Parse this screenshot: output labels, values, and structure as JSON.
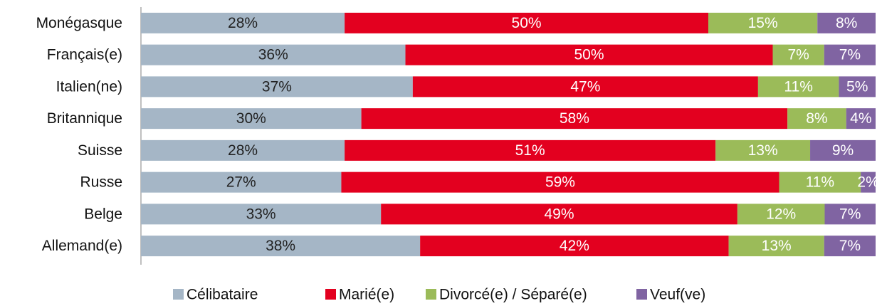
{
  "chart_data": {
    "type": "bar",
    "orientation": "horizontal",
    "stacked": "percent",
    "categories": [
      "Monégasque",
      "Français(e)",
      "Italien(ne)",
      "Britannique",
      "Suisse",
      "Russe",
      "Belge",
      "Allemand(e)"
    ],
    "series": [
      {
        "name": "Célibataire",
        "color": "#a5b6c6",
        "label_color": "#222222",
        "values": [
          28,
          36,
          37,
          30,
          28,
          27,
          33,
          38
        ],
        "value_labels": [
          "28%",
          "36%",
          "37%",
          "30%",
          "28%",
          "27%",
          "33%",
          "38%"
        ]
      },
      {
        "name": "Marié(e)",
        "color": "#e3001f",
        "label_color": "#ffffff",
        "values": [
          50,
          50,
          47,
          58,
          51,
          59,
          49,
          42
        ],
        "value_labels": [
          "50%",
          "50%",
          "47%",
          "58%",
          "51%",
          "59%",
          "49%",
          "42%"
        ]
      },
      {
        "name": "Divorcé(e) / Séparé(e)",
        "color": "#9bbb59",
        "label_color": "#ffffff",
        "values": [
          15,
          7,
          11,
          8,
          13,
          11,
          12,
          13
        ],
        "value_labels": [
          "15%",
          "7%",
          "11%",
          "8%",
          "13%",
          "11%",
          "12%",
          "13%"
        ]
      },
      {
        "name": "Veuf(ve)",
        "color": "#8064a2",
        "label_color": "#ffffff",
        "values": [
          8,
          7,
          5,
          4,
          9,
          2,
          7,
          7
        ],
        "value_labels": [
          "8%",
          "7%",
          "5%",
          "4%",
          "9%",
          "2%",
          "7%",
          "7%"
        ]
      }
    ],
    "legend": "bottom"
  }
}
